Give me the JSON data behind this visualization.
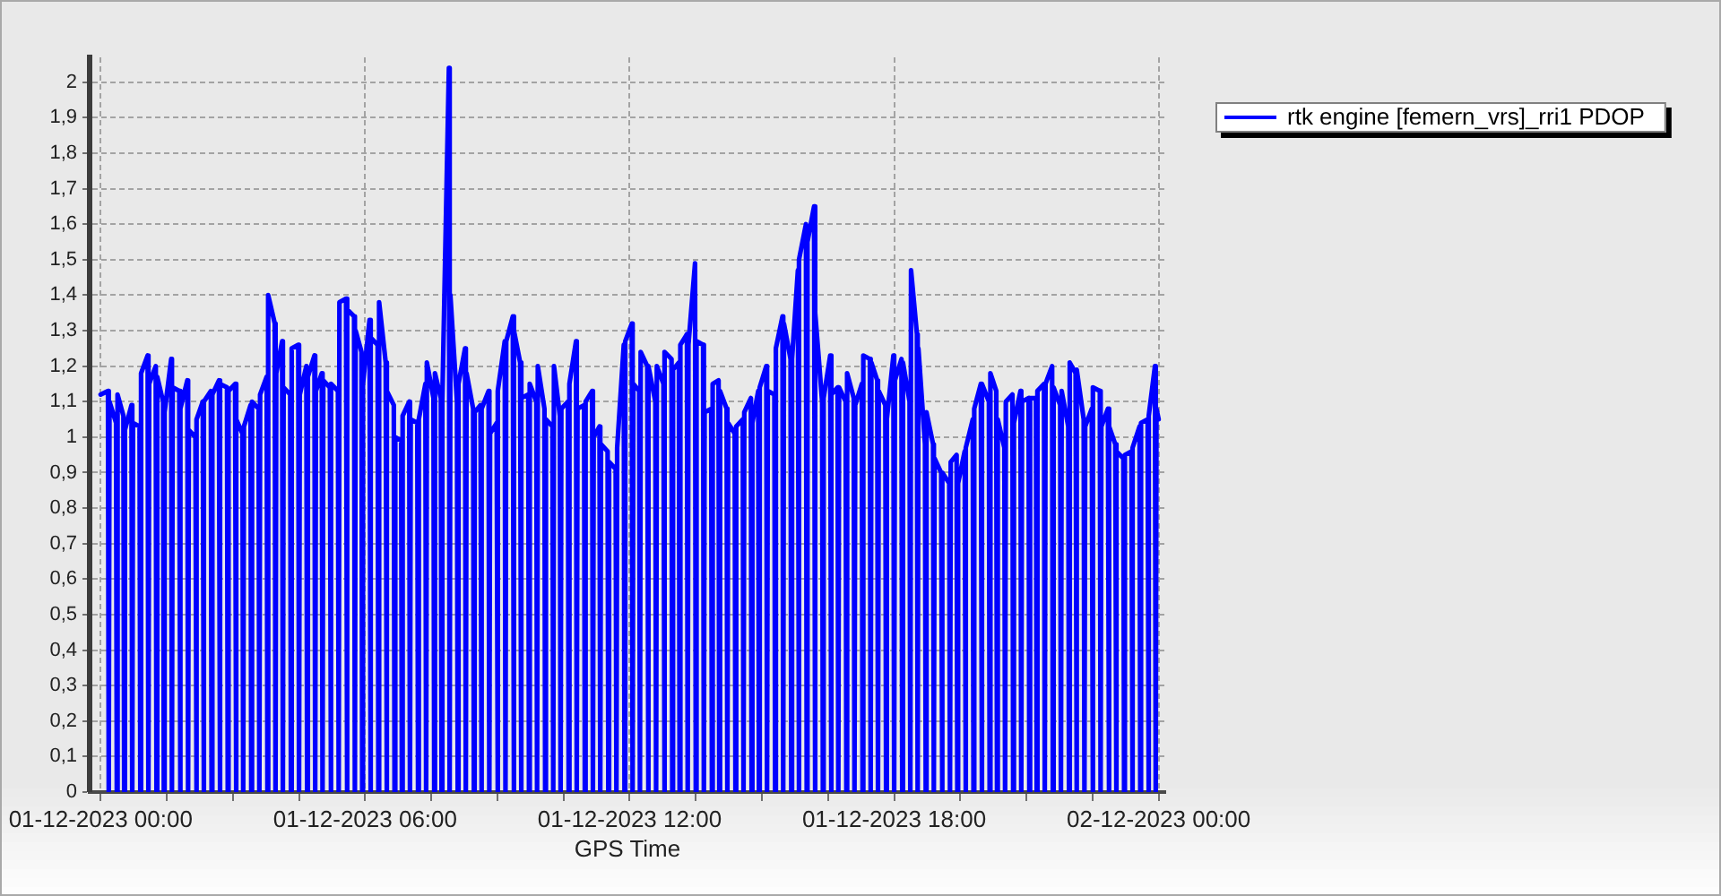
{
  "chart_data": {
    "type": "line",
    "xlabel": "GPS Time",
    "legend": "top right",
    "grid": true,
    "xlim": [
      "2023-11-30T23:45",
      "2023-12-02T00:09"
    ],
    "xticks": [
      {
        "value": "2023-12-01T00:00",
        "label": "01-12-2023 00:00"
      },
      {
        "value": "2023-12-01T01:30",
        "label": null
      },
      {
        "value": "2023-12-01T03:00",
        "label": null
      },
      {
        "value": "2023-12-01T04:30",
        "label": null
      },
      {
        "value": "2023-12-01T06:00",
        "label": "01-12-2023 06:00"
      },
      {
        "value": "2023-12-01T07:30",
        "label": null
      },
      {
        "value": "2023-12-01T09:00",
        "label": null
      },
      {
        "value": "2023-12-01T10:30",
        "label": null
      },
      {
        "value": "2023-12-01T12:00",
        "label": "01-12-2023 12:00"
      },
      {
        "value": "2023-12-01T13:30",
        "label": null
      },
      {
        "value": "2023-12-01T15:00",
        "label": null
      },
      {
        "value": "2023-12-01T16:30",
        "label": null
      },
      {
        "value": "2023-12-01T18:00",
        "label": "01-12-2023 18:00"
      },
      {
        "value": "2023-12-01T19:30",
        "label": null
      },
      {
        "value": "2023-12-01T21:00",
        "label": null
      },
      {
        "value": "2023-12-01T22:30",
        "label": null
      },
      {
        "value": "2023-12-02T00:00",
        "label": "02-12-2023 00:00"
      }
    ],
    "ylim": [
      0,
      2.07
    ],
    "yticks": [
      0,
      {
        "value": 0.1,
        "label": "0,1"
      },
      {
        "value": 0.2,
        "label": "0,2"
      },
      {
        "value": 0.3,
        "label": "0,3"
      },
      {
        "value": 0.4,
        "label": "0,4"
      },
      {
        "value": 0.5,
        "label": "0,5"
      },
      {
        "value": 0.6,
        "label": "0,6"
      },
      {
        "value": 0.7,
        "label": "0,7"
      },
      {
        "value": 0.8,
        "label": "0,8"
      },
      {
        "value": 0.9,
        "label": "0,9"
      },
      1,
      {
        "value": 1.1,
        "label": "1,1"
      },
      {
        "value": 1.2,
        "label": "1,2"
      },
      {
        "value": 1.3,
        "label": "1,3"
      },
      {
        "value": 1.4,
        "label": "1,4"
      },
      {
        "value": 1.5,
        "label": "1,5"
      },
      {
        "value": 1.6,
        "label": "1,6"
      },
      {
        "value": 1.7,
        "label": "1,7"
      },
      {
        "value": 1.8,
        "label": "1,8"
      },
      {
        "value": 1.9,
        "label": "1,9"
      },
      2
    ],
    "x": [
      "2023-12-01T00:00",
      "2023-12-01T00:10",
      "2023-12-01T00:11",
      "2023-12-01T00:12",
      "2023-12-01T00:21",
      "2023-12-01T00:22",
      "2023-12-01T00:23",
      "2023-12-01T00:31",
      "2023-12-01T00:32",
      "2023-12-01T00:33",
      "2023-12-01T00:42",
      "2023-12-01T00:43",
      "2023-12-01T00:44",
      "2023-12-01T00:53",
      "2023-12-01T00:54",
      "2023-12-01T00:55",
      "2023-12-01T01:04",
      "2023-12-01T01:05",
      "2023-12-01T01:06",
      "2023-12-01T01:15",
      "2023-12-01T01:16",
      "2023-12-01T01:17",
      "2023-12-01T01:25",
      "2023-12-01T01:26",
      "2023-12-01T01:27",
      "2023-12-01T01:36",
      "2023-12-01T01:37",
      "2023-12-01T01:38",
      "2023-12-01T01:47",
      "2023-12-01T01:48",
      "2023-12-01T01:49",
      "2023-12-01T01:58",
      "2023-12-01T01:59",
      "2023-12-01T02:00",
      "2023-12-01T02:09",
      "2023-12-01T02:10",
      "2023-12-01T02:11",
      "2023-12-01T02:19",
      "2023-12-01T02:20",
      "2023-12-01T02:21",
      "2023-12-01T02:30",
      "2023-12-01T02:31",
      "2023-12-01T02:32",
      "2023-12-01T02:41",
      "2023-12-01T02:42",
      "2023-12-01T02:43",
      "2023-12-01T02:52",
      "2023-12-01T02:53",
      "2023-12-01T02:54",
      "2023-12-01T03:03",
      "2023-12-01T03:04",
      "2023-12-01T03:05",
      "2023-12-01T03:13",
      "2023-12-01T03:14",
      "2023-12-01T03:15",
      "2023-12-01T03:24",
      "2023-12-01T03:25",
      "2023-12-01T03:26",
      "2023-12-01T03:35",
      "2023-12-01T03:36",
      "2023-12-01T03:37",
      "2023-12-01T03:46",
      "2023-12-01T03:47",
      "2023-12-01T03:48",
      "2023-12-01T03:57",
      "2023-12-01T03:58",
      "2023-12-01T03:59",
      "2023-12-01T04:07",
      "2023-12-01T04:08",
      "2023-12-01T04:09",
      "2023-12-01T04:18",
      "2023-12-01T04:19",
      "2023-12-01T04:20",
      "2023-12-01T04:29",
      "2023-12-01T04:30",
      "2023-12-01T04:31",
      "2023-12-01T04:40",
      "2023-12-01T04:41",
      "2023-12-01T04:42",
      "2023-12-01T04:51",
      "2023-12-01T04:52",
      "2023-12-01T04:53",
      "2023-12-01T05:01",
      "2023-12-01T05:02",
      "2023-12-01T05:03",
      "2023-12-01T05:12",
      "2023-12-01T05:13",
      "2023-12-01T05:14",
      "2023-12-01T05:23",
      "2023-12-01T05:24",
      "2023-12-01T05:25",
      "2023-12-01T05:34",
      "2023-12-01T05:35",
      "2023-12-01T05:36",
      "2023-12-01T05:45",
      "2023-12-01T05:46",
      "2023-12-01T05:47",
      "2023-12-01T05:55",
      "2023-12-01T05:56",
      "2023-12-01T05:57",
      "2023-12-01T06:06",
      "2023-12-01T06:07",
      "2023-12-01T06:08",
      "2023-12-01T06:17",
      "2023-12-01T06:18",
      "2023-12-01T06:19",
      "2023-12-01T06:28",
      "2023-12-01T06:29",
      "2023-12-01T06:30",
      "2023-12-01T06:39",
      "2023-12-01T06:40",
      "2023-12-01T06:41",
      "2023-12-01T06:49",
      "2023-12-01T06:50",
      "2023-12-01T06:51",
      "2023-12-01T07:00",
      "2023-12-01T07:01",
      "2023-12-01T07:02",
      "2023-12-01T07:11",
      "2023-12-01T07:12",
      "2023-12-01T07:13",
      "2023-12-01T07:22",
      "2023-12-01T07:23",
      "2023-12-01T07:24",
      "2023-12-01T07:33",
      "2023-12-01T07:34",
      "2023-12-01T07:35",
      "2023-12-01T07:43",
      "2023-12-01T07:44",
      "2023-12-01T07:45",
      "2023-12-01T07:54",
      "2023-12-01T07:55",
      "2023-12-01T07:56",
      "2023-12-01T08:05",
      "2023-12-01T08:06",
      "2023-12-01T08:07",
      "2023-12-01T08:16",
      "2023-12-01T08:17",
      "2023-12-01T08:18",
      "2023-12-01T08:27",
      "2023-12-01T08:28",
      "2023-12-01T08:29",
      "2023-12-01T08:37",
      "2023-12-01T08:38",
      "2023-12-01T08:39",
      "2023-12-01T08:48",
      "2023-12-01T08:49",
      "2023-12-01T08:50",
      "2023-12-01T08:59",
      "2023-12-01T09:00",
      "2023-12-01T09:01",
      "2023-12-01T09:10",
      "2023-12-01T09:11",
      "2023-12-01T09:12",
      "2023-12-01T09:21",
      "2023-12-01T09:22",
      "2023-12-01T09:23",
      "2023-12-01T09:31",
      "2023-12-01T09:32",
      "2023-12-01T09:33",
      "2023-12-01T09:42",
      "2023-12-01T09:43",
      "2023-12-01T09:44",
      "2023-12-01T09:53",
      "2023-12-01T09:54",
      "2023-12-01T09:55",
      "2023-12-01T10:04",
      "2023-12-01T10:05",
      "2023-12-01T10:06",
      "2023-12-01T10:15",
      "2023-12-01T10:16",
      "2023-12-01T10:17",
      "2023-12-01T10:25",
      "2023-12-01T10:26",
      "2023-12-01T10:27",
      "2023-12-01T10:36",
      "2023-12-01T10:37",
      "2023-12-01T10:38",
      "2023-12-01T10:47",
      "2023-12-01T10:48",
      "2023-12-01T10:49",
      "2023-12-01T10:58",
      "2023-12-01T10:59",
      "2023-12-01T11:00",
      "2023-12-01T11:09",
      "2023-12-01T11:10",
      "2023-12-01T11:11",
      "2023-12-01T11:19",
      "2023-12-01T11:20",
      "2023-12-01T11:21",
      "2023-12-01T11:30",
      "2023-12-01T11:31",
      "2023-12-01T11:32",
      "2023-12-01T11:41",
      "2023-12-01T11:42",
      "2023-12-01T11:43",
      "2023-12-01T11:52",
      "2023-12-01T11:53",
      "2023-12-01T11:54",
      "2023-12-01T12:03",
      "2023-12-01T12:04",
      "2023-12-01T12:05",
      "2023-12-01T12:13",
      "2023-12-01T12:14",
      "2023-12-01T12:15",
      "2023-12-01T12:24",
      "2023-12-01T12:25",
      "2023-12-01T12:26",
      "2023-12-01T12:35",
      "2023-12-01T12:36",
      "2023-12-01T12:37",
      "2023-12-01T12:46",
      "2023-12-01T12:47",
      "2023-12-01T12:48",
      "2023-12-01T12:57",
      "2023-12-01T12:58",
      "2023-12-01T12:59",
      "2023-12-01T13:07",
      "2023-12-01T13:08",
      "2023-12-01T13:09",
      "2023-12-01T13:18",
      "2023-12-01T13:19",
      "2023-12-01T13:20",
      "2023-12-01T13:29",
      "2023-12-01T13:30",
      "2023-12-01T13:31",
      "2023-12-01T13:40",
      "2023-12-01T13:41",
      "2023-12-01T13:42",
      "2023-12-01T13:51",
      "2023-12-01T13:52",
      "2023-12-01T13:53",
      "2023-12-01T14:01",
      "2023-12-01T14:02",
      "2023-12-01T14:03",
      "2023-12-01T14:12",
      "2023-12-01T14:13",
      "2023-12-01T14:14",
      "2023-12-01T14:23",
      "2023-12-01T14:24",
      "2023-12-01T14:25",
      "2023-12-01T14:34",
      "2023-12-01T14:35",
      "2023-12-01T14:36",
      "2023-12-01T14:45",
      "2023-12-01T14:46",
      "2023-12-01T14:47",
      "2023-12-01T14:55",
      "2023-12-01T14:56",
      "2023-12-01T14:57",
      "2023-12-01T15:06",
      "2023-12-01T15:07",
      "2023-12-01T15:08",
      "2023-12-01T15:17",
      "2023-12-01T15:18",
      "2023-12-01T15:19",
      "2023-12-01T15:28",
      "2023-12-01T15:29",
      "2023-12-01T15:30",
      "2023-12-01T15:39",
      "2023-12-01T15:40",
      "2023-12-01T15:41",
      "2023-12-01T15:49",
      "2023-12-01T15:50",
      "2023-12-01T15:51",
      "2023-12-01T16:00",
      "2023-12-01T16:01",
      "2023-12-01T16:02",
      "2023-12-01T16:11",
      "2023-12-01T16:12",
      "2023-12-01T16:13",
      "2023-12-01T16:22",
      "2023-12-01T16:23",
      "2023-12-01T16:24",
      "2023-12-01T16:33",
      "2023-12-01T16:34",
      "2023-12-01T16:35",
      "2023-12-01T16:43",
      "2023-12-01T16:44",
      "2023-12-01T16:45",
      "2023-12-01T16:54",
      "2023-12-01T16:55",
      "2023-12-01T16:56",
      "2023-12-01T17:05",
      "2023-12-01T17:06",
      "2023-12-01T17:07",
      "2023-12-01T17:16",
      "2023-12-01T17:17",
      "2023-12-01T17:18",
      "2023-12-01T17:27",
      "2023-12-01T17:28",
      "2023-12-01T17:29",
      "2023-12-01T17:37",
      "2023-12-01T17:38",
      "2023-12-01T17:39",
      "2023-12-01T17:48",
      "2023-12-01T17:49",
      "2023-12-01T17:50",
      "2023-12-01T17:59",
      "2023-12-01T18:00",
      "2023-12-01T18:01",
      "2023-12-01T18:10",
      "2023-12-01T18:11",
      "2023-12-01T18:12",
      "2023-12-01T18:21",
      "2023-12-01T18:22",
      "2023-12-01T18:23",
      "2023-12-01T18:31",
      "2023-12-01T18:32",
      "2023-12-01T18:33",
      "2023-12-01T18:42",
      "2023-12-01T18:43",
      "2023-12-01T18:44",
      "2023-12-01T18:53",
      "2023-12-01T18:54",
      "2023-12-01T18:55",
      "2023-12-01T19:04",
      "2023-12-01T19:05",
      "2023-12-01T19:06",
      "2023-12-01T19:15",
      "2023-12-01T19:16",
      "2023-12-01T19:17",
      "2023-12-01T19:25",
      "2023-12-01T19:26",
      "2023-12-01T19:27",
      "2023-12-01T19:36",
      "2023-12-01T19:37",
      "2023-12-01T19:38",
      "2023-12-01T19:47",
      "2023-12-01T19:48",
      "2023-12-01T19:49",
      "2023-12-01T19:58",
      "2023-12-01T19:59",
      "2023-12-01T20:00",
      "2023-12-01T20:09",
      "2023-12-01T20:10",
      "2023-12-01T20:11",
      "2023-12-01T20:19",
      "2023-12-01T20:20",
      "2023-12-01T20:21",
      "2023-12-01T20:30",
      "2023-12-01T20:31",
      "2023-12-01T20:32",
      "2023-12-01T20:41",
      "2023-12-01T20:42",
      "2023-12-01T20:43",
      "2023-12-01T20:52",
      "2023-12-01T20:53",
      "2023-12-01T20:54",
      "2023-12-01T21:03",
      "2023-12-01T21:04",
      "2023-12-01T21:05",
      "2023-12-01T21:13",
      "2023-12-01T21:14",
      "2023-12-01T21:15",
      "2023-12-01T21:24",
      "2023-12-01T21:25",
      "2023-12-01T21:26",
      "2023-12-01T21:35",
      "2023-12-01T21:36",
      "2023-12-01T21:37",
      "2023-12-01T21:46",
      "2023-12-01T21:47",
      "2023-12-01T21:48",
      "2023-12-01T21:57",
      "2023-12-01T21:58",
      "2023-12-01T21:59",
      "2023-12-01T22:07",
      "2023-12-01T22:08",
      "2023-12-01T22:09",
      "2023-12-01T22:18",
      "2023-12-01T22:19",
      "2023-12-01T22:20",
      "2023-12-01T22:29",
      "2023-12-01T22:30",
      "2023-12-01T22:31",
      "2023-12-01T22:40",
      "2023-12-01T22:41",
      "2023-12-01T22:42",
      "2023-12-01T22:51",
      "2023-12-01T22:52",
      "2023-12-01T22:53",
      "2023-12-01T23:01",
      "2023-12-01T23:02",
      "2023-12-01T23:03",
      "2023-12-01T23:12",
      "2023-12-01T23:13",
      "2023-12-01T23:14",
      "2023-12-01T23:23",
      "2023-12-01T23:24",
      "2023-12-01T23:25",
      "2023-12-01T23:34",
      "2023-12-01T23:35",
      "2023-12-01T23:36",
      "2023-12-01T23:45",
      "2023-12-01T23:46",
      "2023-12-01T23:47",
      "2023-12-01T23:55",
      "2023-12-01T23:56",
      "2023-12-01T23:57",
      "2023-12-02T00:00"
    ],
    "series": [
      {
        "name": "rtk engine [femern_vrs]_rri1 PDOP",
        "color": "#0000ff",
        "values": [
          1.12,
          1.13,
          0,
          1.1,
          1.04,
          0,
          1.12,
          1.06,
          0,
          1.02,
          1.09,
          0,
          1.04,
          1.03,
          0,
          1.18,
          1.23,
          0,
          1.15,
          1.2,
          0,
          1.17,
          1.1,
          0,
          1.07,
          1.22,
          0,
          1.14,
          1.13,
          0,
          1.08,
          1.16,
          0,
          1.02,
          1,
          0,
          1.05,
          1.1,
          0,
          1.1,
          1.13,
          0,
          1.12,
          1.16,
          0,
          1.15,
          1.14,
          0,
          1.13,
          1.15,
          0,
          1.05,
          1.01,
          0,
          1.03,
          1.09,
          0,
          1.1,
          1.08,
          0,
          1.12,
          1.17,
          0,
          1.4,
          1.32,
          0,
          1.18,
          1.27,
          0,
          1.14,
          1.12,
          0,
          1.25,
          1.26,
          0,
          1.12,
          1.2,
          0,
          1.17,
          1.23,
          0,
          1.13,
          1.18,
          0,
          1.16,
          1.14,
          0,
          1.15,
          1.13,
          0,
          1.38,
          1.39,
          0,
          1.36,
          1.34,
          0,
          1.3,
          1.24,
          0,
          1.15,
          1.33,
          0,
          1.28,
          1.26,
          0,
          1.38,
          1.21,
          0,
          1.13,
          1.09,
          0,
          1,
          0.99,
          0,
          1.06,
          1.1,
          0,
          1.05,
          1.04,
          0,
          1.05,
          1.15,
          0,
          1.21,
          1.11,
          0,
          1.18,
          1.11,
          0,
          1.1,
          2.04,
          0,
          1.4,
          1.1,
          0,
          1.15,
          1.25,
          0,
          1.18,
          1.08,
          0,
          1.07,
          1.09,
          0,
          1.08,
          1.13,
          0,
          1.01,
          1.04,
          0,
          1.13,
          1.27,
          0,
          1.27,
          1.34,
          0,
          1.3,
          1.21,
          0,
          1.11,
          1.12,
          0,
          1.15,
          1.1,
          0,
          1.2,
          1.08,
          0,
          1.05,
          1.03,
          0,
          1.2,
          1.06,
          0,
          1.08,
          1.1,
          0,
          1.15,
          1.27,
          0,
          1.08,
          1.09,
          0,
          1.1,
          1.13,
          0,
          1,
          1.03,
          0,
          0.98,
          0.96,
          0,
          0.93,
          0.91,
          0,
          0.97,
          1.26,
          0,
          1.27,
          1.32,
          0,
          1.15,
          1.13,
          0,
          1.24,
          1.2,
          0,
          1.2,
          1.1,
          0,
          1.2,
          1.15,
          0,
          1.24,
          1.22,
          0,
          1.19,
          1.21,
          0,
          1.26,
          1.29,
          0,
          1.26,
          1.49,
          0,
          1.27,
          1.26,
          0,
          1.07,
          1.08,
          0,
          1.15,
          1.16,
          0,
          1.13,
          1.08,
          0,
          1.04,
          1.01,
          0,
          1.03,
          1.05,
          0,
          1.07,
          1.11,
          0,
          1.04,
          1.13,
          0,
          1.14,
          1.2,
          0,
          1.13,
          1.12,
          0,
          1.25,
          1.34,
          0,
          1.32,
          1.22,
          0,
          1.22,
          1.47,
          0,
          1.5,
          1.6,
          0,
          1.55,
          1.65,
          0,
          1.35,
          1.1,
          0,
          1.11,
          1.23,
          0,
          1.12,
          1.14,
          0,
          1.14,
          1.1,
          0,
          1.18,
          1.11,
          0,
          1.09,
          1.15,
          0,
          1.23,
          1.22,
          0,
          1.21,
          1.16,
          0,
          1.13,
          1.09,
          0,
          1.05,
          1.23,
          0,
          1.16,
          1.22,
          0,
          1.21,
          1.1,
          0,
          1.47,
          1.29,
          0,
          1.25,
          0.98,
          0,
          1.07,
          0.98,
          0,
          0.94,
          0.9,
          0,
          0.9,
          0.87,
          0,
          0.93,
          0.95,
          0,
          0.87,
          0.96,
          0,
          0.97,
          1.05,
          0,
          1.08,
          1.15,
          0,
          1.15,
          1.1,
          0,
          1.18,
          1.13,
          0,
          1.05,
          0.97,
          0,
          1.1,
          1.12,
          0,
          1.04,
          1.13,
          0,
          1.1,
          1.11,
          0,
          1.11,
          1.11,
          0,
          1.13,
          1.15,
          0,
          1.15,
          1.2,
          0,
          1.14,
          1.09,
          0,
          1.13,
          1.03,
          0,
          1.21,
          1.18,
          0,
          1.19,
          1.05,
          0,
          1.03,
          1.08,
          0,
          1.14,
          1.13,
          0,
          1.03,
          1.08,
          0,
          1.03,
          0.98,
          0,
          0.96,
          0.94,
          0,
          0.95,
          0.96,
          0,
          0.97,
          1.03,
          0,
          1.04,
          1.05,
          0,
          1.06,
          1.2,
          0,
          1.08,
          1.05
        ]
      }
    ]
  }
}
